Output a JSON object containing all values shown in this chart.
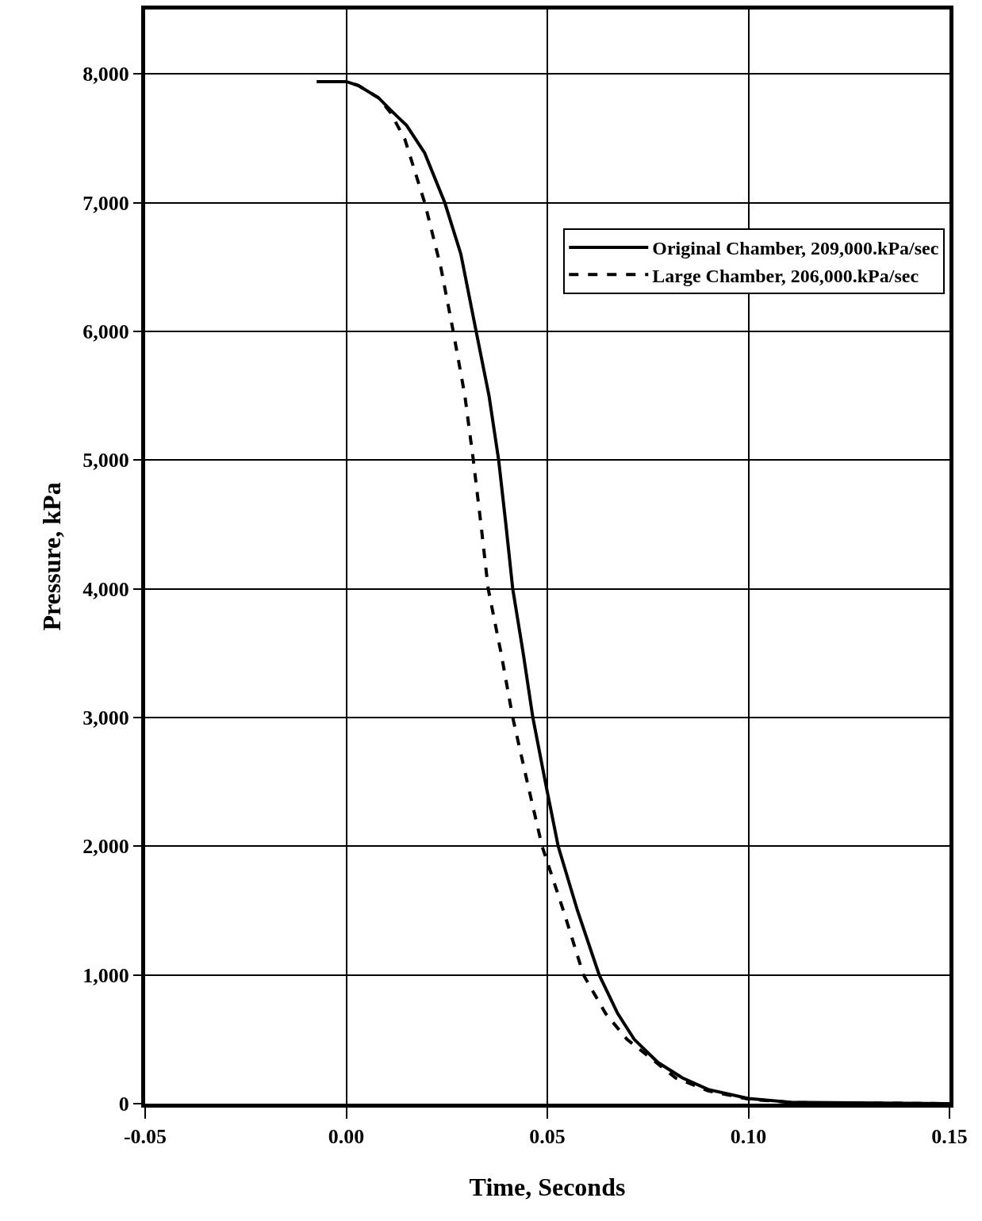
{
  "chart_data": {
    "type": "line",
    "xlabel": "Time, Seconds",
    "ylabel": "Pressure, kPa",
    "xlim": [
      -0.05,
      0.15
    ],
    "ylim": [
      0,
      8500
    ],
    "xticks": [
      {
        "value": -0.05,
        "label": "-0.05"
      },
      {
        "value": 0,
        "label": "0.00"
      },
      {
        "value": 0.05,
        "label": "0.05"
      },
      {
        "value": 0.1,
        "label": "0.10"
      },
      {
        "value": 0.15,
        "label": "0.15"
      }
    ],
    "yticks": [
      0,
      {
        "value": 1000,
        "label": "1,000"
      },
      {
        "value": 2000,
        "label": "2,000"
      },
      {
        "value": 3000,
        "label": "3,000"
      },
      {
        "value": 4000,
        "label": "4,000"
      },
      {
        "value": 5000,
        "label": "5,000"
      },
      {
        "value": 6000,
        "label": "6,000"
      },
      {
        "value": 7000,
        "label": "7,000"
      },
      {
        "value": 8000,
        "label": "8,000"
      }
    ],
    "grid": true,
    "legend": "top right",
    "marker": "none",
    "series": [
      {
        "name": "Original Chamber, 209,000.kPa/sec",
        "color": "#000000",
        "line_style": "solid",
        "x": [
          -0.0073,
          0,
          0.003,
          0.008,
          0.011,
          0.015,
          0.0195,
          0.0245,
          0.0285,
          0.0323,
          0.0355,
          0.0379,
          0.0397,
          0.0414,
          0.044,
          0.0464,
          0.0495,
          0.0527,
          0.0575,
          0.0629,
          0.0675,
          0.0716,
          0.0775,
          0.0836,
          0.09,
          0.1,
          0.111,
          0.15
        ],
        "values": [
          7940,
          7940,
          7910,
          7815,
          7720,
          7600,
          7385,
          7000,
          6600,
          6000,
          5500,
          5000,
          4500,
          4000,
          3500,
          3000,
          2500,
          2000,
          1500,
          1000,
          700,
          500,
          320,
          200,
          110,
          40,
          10,
          0
        ]
      },
      {
        "name": "Large Chamber, 206,000.kPa/sec",
        "color": "#000000",
        "line_style": "dashed",
        "x": [
          -0.0073,
          0,
          0.003,
          0.008,
          0.011,
          0.0146,
          0.0195,
          0.0235,
          0.0266,
          0.0295,
          0.0316,
          0.0335,
          0.0353,
          0.0385,
          0.0414,
          0.045,
          0.0487,
          0.054,
          0.059,
          0.0645,
          0.0698,
          0.0819,
          0.09,
          0.1,
          0.111,
          0.15
        ],
        "values": [
          7940,
          7940,
          7910,
          7815,
          7700,
          7490,
          7000,
          6500,
          6000,
          5500,
          5000,
          4500,
          4000,
          3500,
          3000,
          2500,
          2000,
          1500,
          1000,
          700,
          500,
          200,
          100,
          35,
          8,
          0
        ]
      }
    ]
  }
}
